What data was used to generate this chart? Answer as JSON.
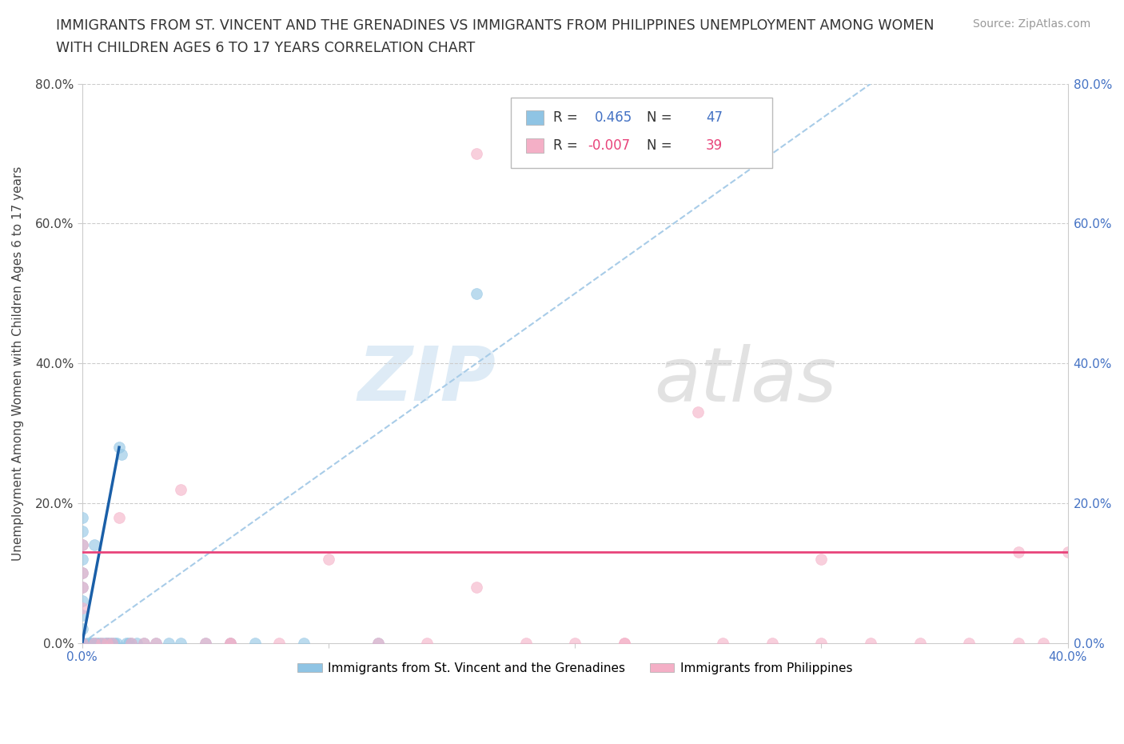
{
  "title_line1": "IMMIGRANTS FROM ST. VINCENT AND THE GRENADINES VS IMMIGRANTS FROM PHILIPPINES UNEMPLOYMENT AMONG WOMEN",
  "title_line2": "WITH CHILDREN AGES 6 TO 17 YEARS CORRELATION CHART",
  "source": "Source: ZipAtlas.com",
  "ylabel": "Unemployment Among Women with Children Ages 6 to 17 years",
  "xlim": [
    0.0,
    0.4
  ],
  "ylim": [
    0.0,
    0.8
  ],
  "xticks": [
    0.0,
    0.1,
    0.2,
    0.3,
    0.4
  ],
  "yticks": [
    0.0,
    0.2,
    0.4,
    0.6,
    0.8
  ],
  "color_blue": "#8fc4e4",
  "color_pink": "#f4afc6",
  "legend1_label": "Immigrants from St. Vincent and the Grenadines",
  "legend2_label": "Immigrants from Philippines",
  "R1": 0.465,
  "N1": 47,
  "R2": -0.007,
  "N2": 39,
  "blue_scatter_x": [
    0.0,
    0.0,
    0.0,
    0.0,
    0.0,
    0.0,
    0.0,
    0.0,
    0.0,
    0.0,
    0.0,
    0.0,
    0.0,
    0.0,
    0.0,
    0.0,
    0.002,
    0.003,
    0.004,
    0.005,
    0.005,
    0.006,
    0.007,
    0.008,
    0.009,
    0.01,
    0.01,
    0.011,
    0.012,
    0.013,
    0.014,
    0.015,
    0.016,
    0.018,
    0.019,
    0.02,
    0.022,
    0.025,
    0.03,
    0.035,
    0.04,
    0.05,
    0.06,
    0.07,
    0.09,
    0.12,
    0.16
  ],
  "blue_scatter_y": [
    0.0,
    0.0,
    0.0,
    0.0,
    0.0,
    0.0,
    0.0,
    0.02,
    0.04,
    0.06,
    0.08,
    0.1,
    0.12,
    0.14,
    0.16,
    0.18,
    0.0,
    0.0,
    0.0,
    0.0,
    0.14,
    0.0,
    0.0,
    0.0,
    0.0,
    0.0,
    0.0,
    0.0,
    0.0,
    0.0,
    0.0,
    0.28,
    0.27,
    0.0,
    0.0,
    0.0,
    0.0,
    0.0,
    0.0,
    0.0,
    0.0,
    0.0,
    0.0,
    0.0,
    0.0,
    0.0,
    0.5
  ],
  "pink_scatter_x": [
    0.0,
    0.0,
    0.0,
    0.0,
    0.0,
    0.005,
    0.008,
    0.01,
    0.012,
    0.015,
    0.02,
    0.025,
    0.03,
    0.04,
    0.05,
    0.06,
    0.06,
    0.08,
    0.1,
    0.12,
    0.14,
    0.16,
    0.18,
    0.2,
    0.22,
    0.25,
    0.26,
    0.28,
    0.3,
    0.3,
    0.32,
    0.34,
    0.36,
    0.38,
    0.38,
    0.39,
    0.4,
    0.16,
    0.22
  ],
  "pink_scatter_y": [
    0.0,
    0.05,
    0.08,
    0.1,
    0.14,
    0.0,
    0.0,
    0.0,
    0.0,
    0.18,
    0.0,
    0.0,
    0.0,
    0.22,
    0.0,
    0.0,
    0.0,
    0.0,
    0.12,
    0.0,
    0.0,
    0.7,
    0.0,
    0.0,
    0.0,
    0.33,
    0.0,
    0.0,
    0.12,
    0.0,
    0.0,
    0.0,
    0.0,
    0.0,
    0.13,
    0.0,
    0.13,
    0.08,
    0.0
  ],
  "blue_trend_x": [
    0.0,
    0.015
  ],
  "blue_trend_y": [
    0.0,
    0.28
  ],
  "pink_trend_x": [
    0.0,
    0.4
  ],
  "pink_trend_y": [
    0.13,
    0.13
  ],
  "dash_line_x": [
    0.0,
    0.32
  ],
  "dash_line_y": [
    0.0,
    0.8
  ]
}
